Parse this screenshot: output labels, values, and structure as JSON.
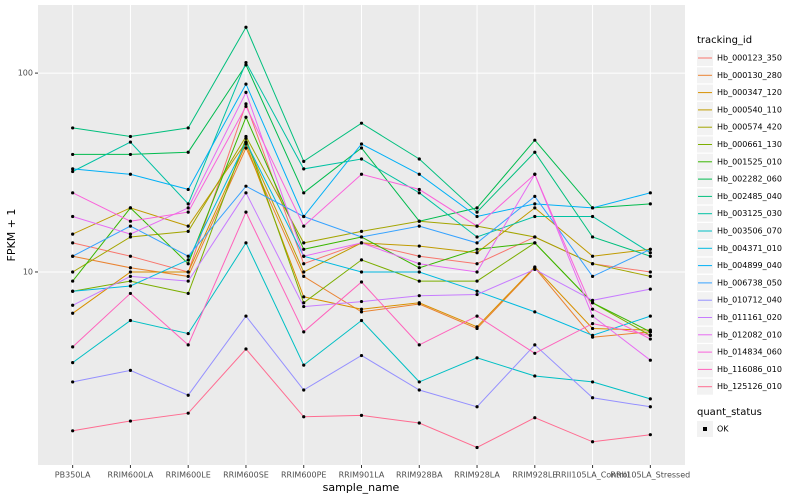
{
  "chart_data": {
    "type": "line",
    "log_y": true,
    "grid": true,
    "x_label": "sample_name",
    "y_label": "FPKM + 1",
    "legend_title": "tracking_id",
    "legend_position": "right",
    "shape_legend_title": "quant_status",
    "shape_legend_entries": [
      "OK"
    ],
    "point_color": "#000000",
    "categories": [
      "PB350LA",
      "RRIM600LA",
      "RRIM600LE",
      "RRIM600SE",
      "RRIM600PE",
      "RRIM901LA",
      "RRIM928BA",
      "RRIM928LA",
      "RRIM928LE",
      "RRII105LA_Control",
      "RRII105LA_Stressed"
    ],
    "ylim": [
      1.07,
      220
    ],
    "yticks": [
      10,
      100
    ],
    "series": [
      {
        "name": "Hb_000123_350",
        "color": "#F8766D",
        "values": [
          14,
          12,
          10,
          70,
          11,
          14,
          12,
          11,
          15,
          11,
          10
        ]
      },
      {
        "name": "Hb_000130_280",
        "color": "#EA8331",
        "values": [
          12,
          10.5,
          9.5,
          42,
          9.5,
          6.3,
          6.9,
          5.2,
          10.5,
          4.7,
          5.0
        ]
      },
      {
        "name": "Hb_000347_120",
        "color": "#D89000",
        "values": [
          6.2,
          10,
          10,
          44,
          7.5,
          6.5,
          7,
          5.3,
          10.6,
          5.2,
          5.1
        ]
      },
      {
        "name": "Hb_000540_110",
        "color": "#C09B00",
        "values": [
          15.5,
          21,
          17,
          45,
          10,
          14,
          13.5,
          12.5,
          21,
          12,
          13
        ]
      },
      {
        "name": "Hb_000574_420",
        "color": "#A3A500",
        "values": [
          10,
          15,
          16,
          48,
          14,
          16,
          18,
          17,
          15,
          11,
          9.5
        ]
      },
      {
        "name": "Hb_000661_130",
        "color": "#7CAE00",
        "values": [
          8,
          9,
          7.8,
          47,
          7,
          11.5,
          9,
          9,
          14,
          7,
          4.8
        ]
      },
      {
        "name": "Hb_001525_010",
        "color": "#39B600",
        "values": [
          9,
          21,
          11,
          60,
          13,
          15,
          10.5,
          13,
          14,
          7,
          5
        ]
      },
      {
        "name": "Hb_002282_060",
        "color": "#00BB4E",
        "values": [
          39,
          39,
          40,
          110,
          25,
          42,
          18,
          21,
          46,
          21,
          22
        ]
      },
      {
        "name": "Hb_002485_040",
        "color": "#00BF7D",
        "values": [
          53,
          48,
          53,
          170,
          36,
          56,
          37,
          20,
          40,
          15,
          12
        ]
      },
      {
        "name": "Hb_003125_030",
        "color": "#00C1A3",
        "values": [
          32,
          45,
          22,
          113,
          33,
          37,
          25,
          15,
          19,
          19,
          12.5
        ]
      },
      {
        "name": "Hb_003506_070",
        "color": "#00BFC4",
        "values": [
          3.5,
          5.7,
          4.9,
          14,
          3.4,
          5.7,
          2.8,
          3.7,
          3.0,
          2.8,
          2.3
        ]
      },
      {
        "name": "Hb_004371_010",
        "color": "#00BAE0",
        "values": [
          8,
          8.5,
          11.5,
          45,
          12,
          10,
          10,
          8,
          6.3,
          4.8,
          6
        ]
      },
      {
        "name": "Hb_004899_040",
        "color": "#00B0F6",
        "values": [
          33,
          31,
          26,
          88,
          19,
          44,
          31,
          19,
          22,
          21,
          25
        ]
      },
      {
        "name": "Hb_006738_050",
        "color": "#35A2FF",
        "values": [
          12,
          17,
          12,
          27,
          19,
          15,
          17,
          14,
          24,
          9.5,
          13
        ]
      },
      {
        "name": "Hb_010712_040",
        "color": "#9590FF",
        "values": [
          2.8,
          3.2,
          2.4,
          6,
          2.55,
          3.8,
          2.55,
          2.1,
          4.3,
          2.33,
          2.1
        ]
      },
      {
        "name": "Hb_011161_020",
        "color": "#C77CFF",
        "values": [
          6.8,
          9.5,
          9,
          25,
          6.7,
          7.1,
          7.6,
          7.7,
          10.3,
          7.2,
          8.2
        ]
      },
      {
        "name": "Hb_012082_010",
        "color": "#E76BF3",
        "values": [
          19,
          15.5,
          21,
          80,
          12,
          14,
          11,
          10,
          31,
          6,
          3.6
        ]
      },
      {
        "name": "Hb_014834_060",
        "color": "#FA62DB",
        "values": [
          25,
          18,
          20,
          68,
          17,
          31,
          26,
          17,
          31,
          6.5,
          4.6
        ]
      },
      {
        "name": "Hb_116086_010",
        "color": "#FF62BC",
        "values": [
          4.2,
          7.8,
          4.3,
          20,
          5,
          8.9,
          4.3,
          6,
          3.9,
          5.5,
          4.8
        ]
      },
      {
        "name": "Hb_125126_010",
        "color": "#FF6C91",
        "values": [
          1.59,
          1.78,
          1.95,
          4.1,
          1.87,
          1.9,
          1.74,
          1.31,
          1.85,
          1.4,
          1.52
        ]
      }
    ]
  }
}
